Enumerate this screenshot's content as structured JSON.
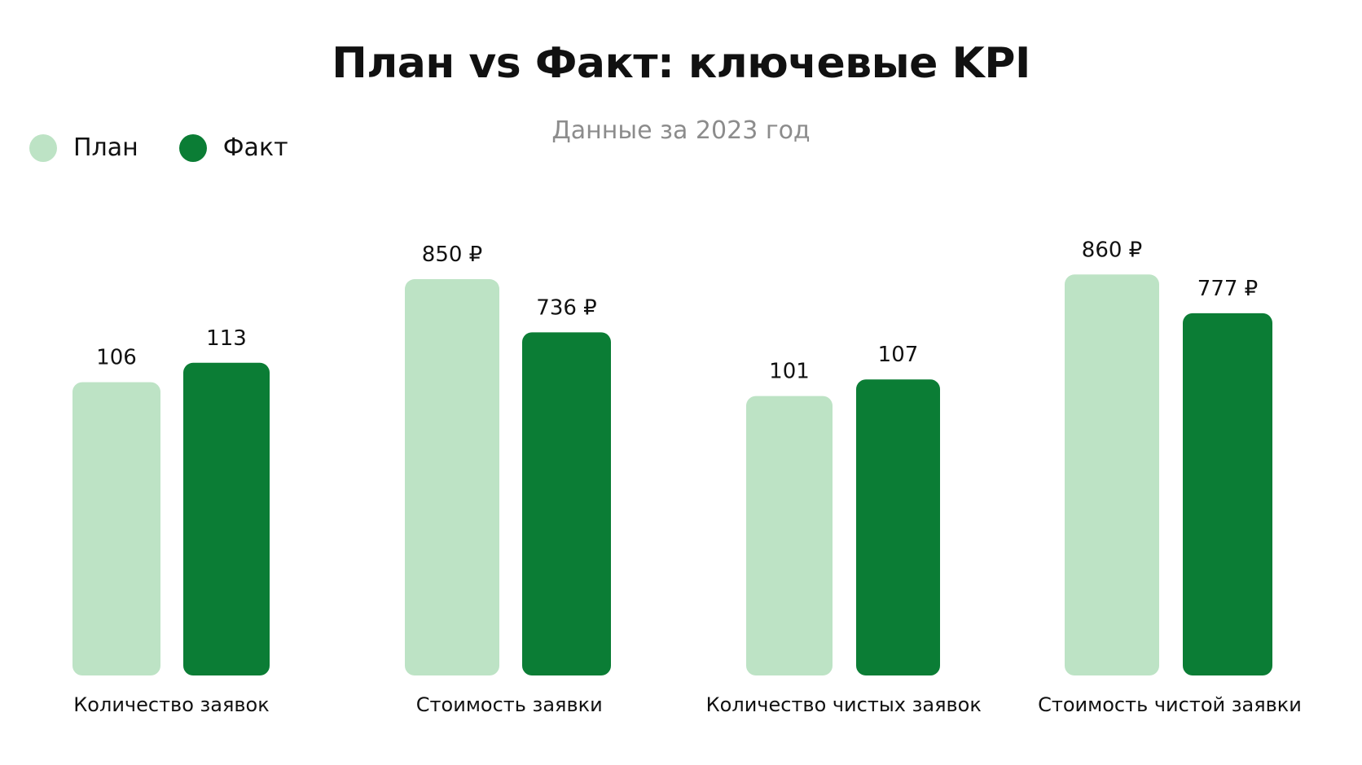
{
  "colors": {
    "plan": "#bde3c5",
    "fact": "#0b7d35"
  },
  "legend": {
    "plan_label": "План",
    "fact_label": "Факт"
  },
  "chart_data": {
    "type": "bar",
    "title": "План vs Факт: ключевые KPI",
    "subtitle": "Данные за 2023 год",
    "legend_position": "top-left",
    "grid": false,
    "categories": [
      "Количество заявок",
      "Стоимость заявки",
      "Количество чистых заявок",
      "Стоимость чистой заявки"
    ],
    "series": [
      {
        "name": "План",
        "values": [
          106,
          850,
          101,
          860
        ],
        "labels": [
          "106",
          "850 ₽",
          "101",
          "860 ₽"
        ]
      },
      {
        "name": "Факт",
        "values": [
          113,
          736,
          107,
          777
        ],
        "labels": [
          "113",
          "736 ₽",
          "107",
          "777 ₽"
        ]
      }
    ]
  }
}
